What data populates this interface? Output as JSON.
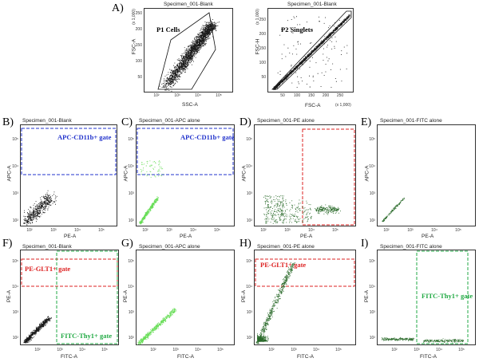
{
  "panels": {
    "A": {
      "letter": "A)",
      "left": {
        "title": "Specimen_001-Blank",
        "xlabel": "SSC-A",
        "ylabel": "FSC-A",
        "scale_note": "(x 1,000)",
        "x_ticks": [
          "10²",
          "10³",
          "10⁴",
          "10⁵"
        ],
        "y_ticks": [
          "50",
          "100",
          "150",
          "200",
          "250"
        ],
        "gate_label": "P1 Cells"
      },
      "right": {
        "title": "Specimen_001-Blank",
        "xlabel": "FSC-A",
        "ylabel": "FSC-H",
        "scale_note_y": "(x 1,000)",
        "scale_note_x": "(x 1,000)",
        "x_ticks": [
          "50",
          "100",
          "150",
          "200",
          "250"
        ],
        "y_ticks": [
          "50",
          "100",
          "150",
          "200",
          "250"
        ],
        "gate_label": "P2 Singlets"
      }
    },
    "B": {
      "letter": "B)",
      "title": "Specimen_001-Blank",
      "xlabel": "PE-A",
      "ylabel": "APC-A",
      "gate_label": "APC-CD11b+ gate"
    },
    "C": {
      "letter": "C)",
      "title": "Specimen_001-APC alone",
      "xlabel": "PE-A",
      "ylabel": "APC-A",
      "gate_label": "APC-CD11b+ gate"
    },
    "D": {
      "letter": "D)",
      "title": "Specimen_001-PE alone",
      "xlabel": "PE-A",
      "ylabel": "APC-A"
    },
    "E": {
      "letter": "E)",
      "title": "Specimen_001-FITC alone",
      "xlabel": "PE-A",
      "ylabel": "APC-A"
    },
    "F": {
      "letter": "F)",
      "title": "Specimen_001-Blank",
      "xlabel": "FITC-A",
      "ylabel": "PE-A",
      "gate_label_pe": "PE-GLT1+ gate",
      "gate_label_fitc": "FITC-Thy1+ gate"
    },
    "G": {
      "letter": "G)",
      "title": "Specimen_001-APC alone",
      "xlabel": "FITC-A",
      "ylabel": "PE-A"
    },
    "H": {
      "letter": "H)",
      "title": "Specimen_001-PE alone",
      "xlabel": "FITC-A",
      "ylabel": "PE-A",
      "gate_label_pe": "PE-GLT1+ gate"
    },
    "I": {
      "letter": "I)",
      "title": "Specimen_001-FITC alone",
      "xlabel": "FITC-A",
      "ylabel": "PE-A",
      "gate_label_fitc": "FITC-Thy1+ gate"
    }
  },
  "log_ticks": [
    "10²",
    "10³",
    "10⁴",
    "10⁵"
  ],
  "colors": {
    "black_dots": "#1a1a1a",
    "green_light": "#66dd55",
    "green_dark": "#2a6a2a",
    "apc_gate": "#2233cc",
    "pe_gate": "#dd2222",
    "fitc_gate": "#22aa44"
  }
}
